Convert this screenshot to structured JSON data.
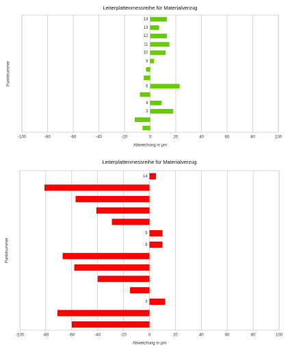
{
  "chart_data": [
    {
      "type": "hbar",
      "title": "Leiterplattenmessreihe für Materialverzug",
      "x_label": "Abweichung in µm",
      "y_label": "Punktnummer",
      "categories": [
        "1",
        "2",
        "3",
        "4",
        "5",
        "6",
        "7",
        "8",
        "9",
        "10",
        "11",
        "12",
        "13",
        "14"
      ],
      "values": [
        -6,
        -12,
        18,
        9,
        -8,
        23,
        -5,
        -3,
        3,
        12,
        15,
        13,
        7,
        13
      ],
      "color": "#66cc00",
      "xlim": [
        -100,
        100
      ],
      "xticks": [
        -100,
        -80,
        -60,
        -40,
        -20,
        0,
        20,
        40,
        60,
        80,
        100
      ],
      "grid": true
    },
    {
      "type": "hbar",
      "title": "Leiterplattenmessreihe für Materialverzug",
      "x_label": "Abweichung in µm",
      "y_label": "Punktnummer",
      "categories": [
        "1",
        "2",
        "3",
        "4",
        "5",
        "6",
        "7",
        "8",
        "9",
        "10",
        "11",
        "12",
        "13",
        "14"
      ],
      "values": [
        -60,
        -71,
        12,
        -15,
        -40,
        -58,
        -67,
        10,
        10,
        -29,
        -41,
        -57,
        -81,
        5
      ],
      "color": "#ff0000",
      "xlim": [
        -100,
        100
      ],
      "xticks": [
        -100,
        -80,
        -60,
        -40,
        -20,
        0,
        20,
        40,
        60,
        80,
        100
      ],
      "grid": true
    }
  ]
}
